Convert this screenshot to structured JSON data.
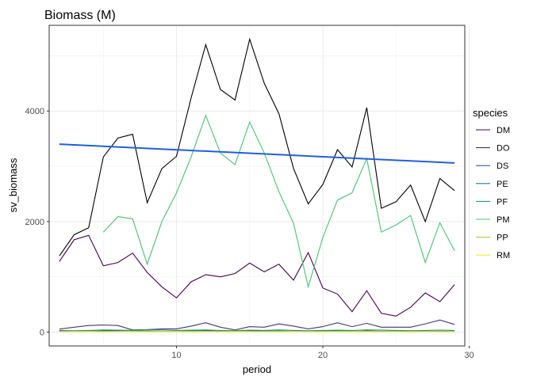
{
  "chart_data": {
    "type": "line",
    "title": "Biomass (M)",
    "xlabel": "period",
    "ylabel": "sv_biomass",
    "xlim": [
      1.3,
      29.7
    ],
    "ylim": [
      -250,
      5550
    ],
    "x_ticks": [
      10,
      20,
      30
    ],
    "y_ticks": [
      0,
      2000,
      4000
    ],
    "grid": true,
    "legend": {
      "title": "species",
      "position": "right"
    },
    "series": [
      {
        "name": "DM",
        "color": "#440154",
        "points": [
          [
            2,
            1280
          ],
          [
            3,
            1670
          ],
          [
            4,
            1750
          ],
          [
            5,
            1200
          ],
          [
            6,
            1260
          ],
          [
            7,
            1430
          ],
          [
            8,
            1080
          ],
          [
            9,
            820
          ],
          [
            10,
            620
          ],
          [
            11,
            910
          ],
          [
            12,
            1040
          ],
          [
            13,
            1000
          ],
          [
            14,
            1060
          ],
          [
            15,
            1250
          ],
          [
            16,
            1090
          ],
          [
            17,
            1230
          ],
          [
            18,
            940
          ],
          [
            19,
            1440
          ],
          [
            20,
            800
          ],
          [
            21,
            690
          ],
          [
            22,
            370
          ],
          [
            23,
            750
          ],
          [
            24,
            340
          ],
          [
            25,
            290
          ],
          [
            26,
            450
          ],
          [
            27,
            710
          ],
          [
            28,
            550
          ],
          [
            29,
            860
          ]
        ]
      },
      {
        "name": "DO",
        "color": "#46337E",
        "points": [
          [
            2,
            55
          ],
          [
            3,
            90
          ],
          [
            4,
            120
          ],
          [
            5,
            130
          ],
          [
            6,
            120
          ],
          [
            7,
            40
          ],
          [
            8,
            45
          ],
          [
            9,
            60
          ],
          [
            10,
            60
          ],
          [
            11,
            110
          ],
          [
            12,
            170
          ],
          [
            13,
            90
          ],
          [
            14,
            40
          ],
          [
            15,
            100
          ],
          [
            16,
            90
          ],
          [
            17,
            150
          ],
          [
            18,
            110
          ],
          [
            19,
            60
          ],
          [
            20,
            100
          ],
          [
            21,
            170
          ],
          [
            22,
            100
          ],
          [
            23,
            160
          ],
          [
            24,
            90
          ],
          [
            25,
            90
          ],
          [
            26,
            90
          ],
          [
            27,
            150
          ],
          [
            28,
            220
          ],
          [
            29,
            140
          ]
        ]
      },
      {
        "name": "DS",
        "color": "#365C8D",
        "points": [
          [
            2,
            30
          ],
          [
            3,
            20
          ],
          [
            4,
            10
          ],
          [
            5,
            25
          ],
          [
            6,
            20
          ],
          [
            7,
            15
          ],
          [
            8,
            20
          ],
          [
            9,
            15
          ],
          [
            10,
            10
          ],
          [
            11,
            20
          ],
          [
            12,
            25
          ],
          [
            13,
            15
          ],
          [
            14,
            10
          ],
          [
            15,
            20
          ],
          [
            16,
            25
          ],
          [
            17,
            15
          ],
          [
            18,
            10
          ],
          [
            19,
            20
          ],
          [
            20,
            15
          ],
          [
            21,
            25
          ],
          [
            22,
            10
          ],
          [
            23,
            20
          ],
          [
            24,
            15
          ],
          [
            25,
            10
          ],
          [
            26,
            20
          ],
          [
            27,
            15
          ],
          [
            28,
            10
          ],
          [
            29,
            15
          ]
        ]
      },
      {
        "name": "PE",
        "color": "#277F8E",
        "points": [
          [
            2,
            20
          ],
          [
            3,
            25
          ],
          [
            4,
            30
          ],
          [
            5,
            40
          ],
          [
            6,
            35
          ],
          [
            7,
            30
          ],
          [
            8,
            45
          ],
          [
            9,
            40
          ],
          [
            10,
            30
          ],
          [
            11,
            35
          ],
          [
            12,
            40
          ],
          [
            13,
            30
          ],
          [
            14,
            25
          ],
          [
            15,
            35
          ],
          [
            16,
            30
          ],
          [
            17,
            40
          ],
          [
            18,
            30
          ],
          [
            19,
            25
          ],
          [
            20,
            30
          ],
          [
            21,
            35
          ],
          [
            22,
            30
          ],
          [
            23,
            40
          ],
          [
            24,
            35
          ],
          [
            25,
            30
          ],
          [
            26,
            25
          ],
          [
            27,
            30
          ],
          [
            28,
            35
          ],
          [
            29,
            30
          ]
        ]
      },
      {
        "name": "PF",
        "color": "#1FA187",
        "points": [
          [
            2,
            15
          ],
          [
            3,
            10
          ],
          [
            4,
            20
          ],
          [
            5,
            15
          ],
          [
            6,
            10
          ],
          [
            7,
            20
          ],
          [
            8,
            15
          ],
          [
            9,
            10
          ],
          [
            10,
            15
          ],
          [
            11,
            20
          ],
          [
            12,
            10
          ],
          [
            13,
            15
          ],
          [
            14,
            20
          ],
          [
            15,
            10
          ],
          [
            16,
            15
          ],
          [
            17,
            20
          ],
          [
            18,
            15
          ],
          [
            19,
            10
          ],
          [
            20,
            15
          ],
          [
            21,
            20
          ],
          [
            22,
            15
          ],
          [
            23,
            10
          ],
          [
            24,
            15
          ],
          [
            25,
            20
          ],
          [
            26,
            15
          ],
          [
            27,
            10
          ],
          [
            28,
            15
          ],
          [
            29,
            10
          ]
        ]
      },
      {
        "name": "PM",
        "color": "#4AC16D",
        "points": [
          [
            5,
            1810
          ],
          [
            6,
            2090
          ],
          [
            7,
            2050
          ],
          [
            8,
            1230
          ],
          [
            9,
            2000
          ],
          [
            10,
            2520
          ],
          [
            11,
            3170
          ],
          [
            12,
            3920
          ],
          [
            13,
            3240
          ],
          [
            14,
            3030
          ],
          [
            15,
            3800
          ],
          [
            16,
            3240
          ],
          [
            17,
            2540
          ],
          [
            18,
            1970
          ],
          [
            19,
            820
          ],
          [
            20,
            1710
          ],
          [
            21,
            2390
          ],
          [
            22,
            2520
          ],
          [
            23,
            3140
          ],
          [
            24,
            1810
          ],
          [
            25,
            1940
          ],
          [
            26,
            2110
          ],
          [
            27,
            1260
          ],
          [
            28,
            1980
          ],
          [
            29,
            1470
          ]
        ]
      },
      {
        "name": "PP",
        "color": "#A0DA39",
        "points": [
          [
            2,
            10
          ],
          [
            3,
            12
          ],
          [
            4,
            15
          ],
          [
            5,
            10
          ],
          [
            6,
            12
          ],
          [
            7,
            15
          ],
          [
            8,
            10
          ],
          [
            9,
            12
          ],
          [
            10,
            15
          ],
          [
            11,
            10
          ],
          [
            12,
            12
          ],
          [
            13,
            10
          ],
          [
            14,
            15
          ],
          [
            15,
            12
          ],
          [
            16,
            10
          ],
          [
            17,
            12
          ],
          [
            18,
            15
          ],
          [
            19,
            10
          ],
          [
            20,
            12
          ],
          [
            21,
            10
          ],
          [
            22,
            12
          ],
          [
            23,
            15
          ],
          [
            24,
            10
          ],
          [
            25,
            12
          ],
          [
            26,
            10
          ],
          [
            27,
            12
          ],
          [
            28,
            10
          ],
          [
            29,
            12
          ]
        ]
      },
      {
        "name": "RM",
        "color": "#FDE725",
        "points": [
          [
            2,
            5
          ],
          [
            3,
            8
          ],
          [
            4,
            6
          ],
          [
            5,
            5
          ],
          [
            6,
            8
          ],
          [
            7,
            6
          ],
          [
            8,
            5
          ],
          [
            9,
            8
          ],
          [
            10,
            6
          ],
          [
            11,
            5
          ],
          [
            12,
            8
          ],
          [
            13,
            6
          ],
          [
            14,
            5
          ],
          [
            15,
            8
          ],
          [
            16,
            6
          ],
          [
            17,
            5
          ],
          [
            18,
            8
          ],
          [
            19,
            6
          ],
          [
            20,
            5
          ],
          [
            21,
            8
          ],
          [
            22,
            6
          ],
          [
            23,
            5
          ],
          [
            24,
            8
          ],
          [
            25,
            6
          ],
          [
            26,
            5
          ],
          [
            27,
            8
          ],
          [
            28,
            6
          ],
          [
            29,
            5
          ]
        ]
      }
    ],
    "total": {
      "color": "#000000",
      "points": [
        [
          2,
          1380
        ],
        [
          3,
          1760
        ],
        [
          4,
          1890
        ],
        [
          5,
          3170
        ],
        [
          6,
          3510
        ],
        [
          7,
          3580
        ],
        [
          8,
          2340
        ],
        [
          9,
          2960
        ],
        [
          10,
          3180
        ],
        [
          11,
          4240
        ],
        [
          12,
          5200
        ],
        [
          13,
          4390
        ],
        [
          14,
          4200
        ],
        [
          15,
          5300
        ],
        [
          16,
          4500
        ],
        [
          17,
          3950
        ],
        [
          18,
          2960
        ],
        [
          19,
          2320
        ],
        [
          20,
          2670
        ],
        [
          21,
          3300
        ],
        [
          22,
          2990
        ],
        [
          23,
          4060
        ],
        [
          24,
          2240
        ],
        [
          25,
          2360
        ],
        [
          26,
          2660
        ],
        [
          27,
          2000
        ],
        [
          28,
          2780
        ],
        [
          29,
          2560
        ]
      ]
    },
    "trend": {
      "color": "#1F5FE0",
      "points": [
        [
          2,
          3400
        ],
        [
          29,
          3060
        ]
      ]
    }
  }
}
